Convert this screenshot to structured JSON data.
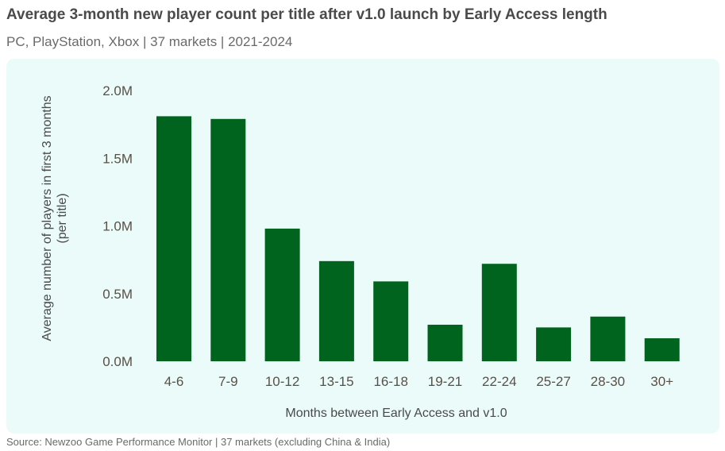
{
  "title": "Average 3-month new player count per title after v1.0 launch by Early Access length",
  "subtitle": "PC, PlayStation, Xbox  | 37 markets | 2021-2024",
  "source": "Source: Newzoo Game Performance Monitor | 37 markets (excluding China & India)",
  "colors": {
    "bar": "#00641e",
    "panel": "#eafbf9"
  },
  "chart_data": {
    "type": "bar",
    "categories": [
      "4-6",
      "7-9",
      "10-12",
      "13-15",
      "16-18",
      "19-21",
      "22-24",
      "25-27",
      "28-30",
      "30+"
    ],
    "values": [
      1810000,
      1790000,
      980000,
      740000,
      590000,
      270000,
      720000,
      250000,
      330000,
      170000
    ],
    "xlabel": "Months between Early Access and v1.0",
    "ylabel": [
      "Average number of players in first 3 months",
      "(per title)"
    ],
    "ylim": [
      0,
      2000000
    ],
    "yticks": [
      0,
      500000,
      1000000,
      1500000,
      2000000
    ],
    "ytick_labels": [
      "0.0M",
      "0.5M",
      "1.0M",
      "1.5M",
      "2.0M"
    ],
    "grid": false,
    "legend": "none"
  }
}
